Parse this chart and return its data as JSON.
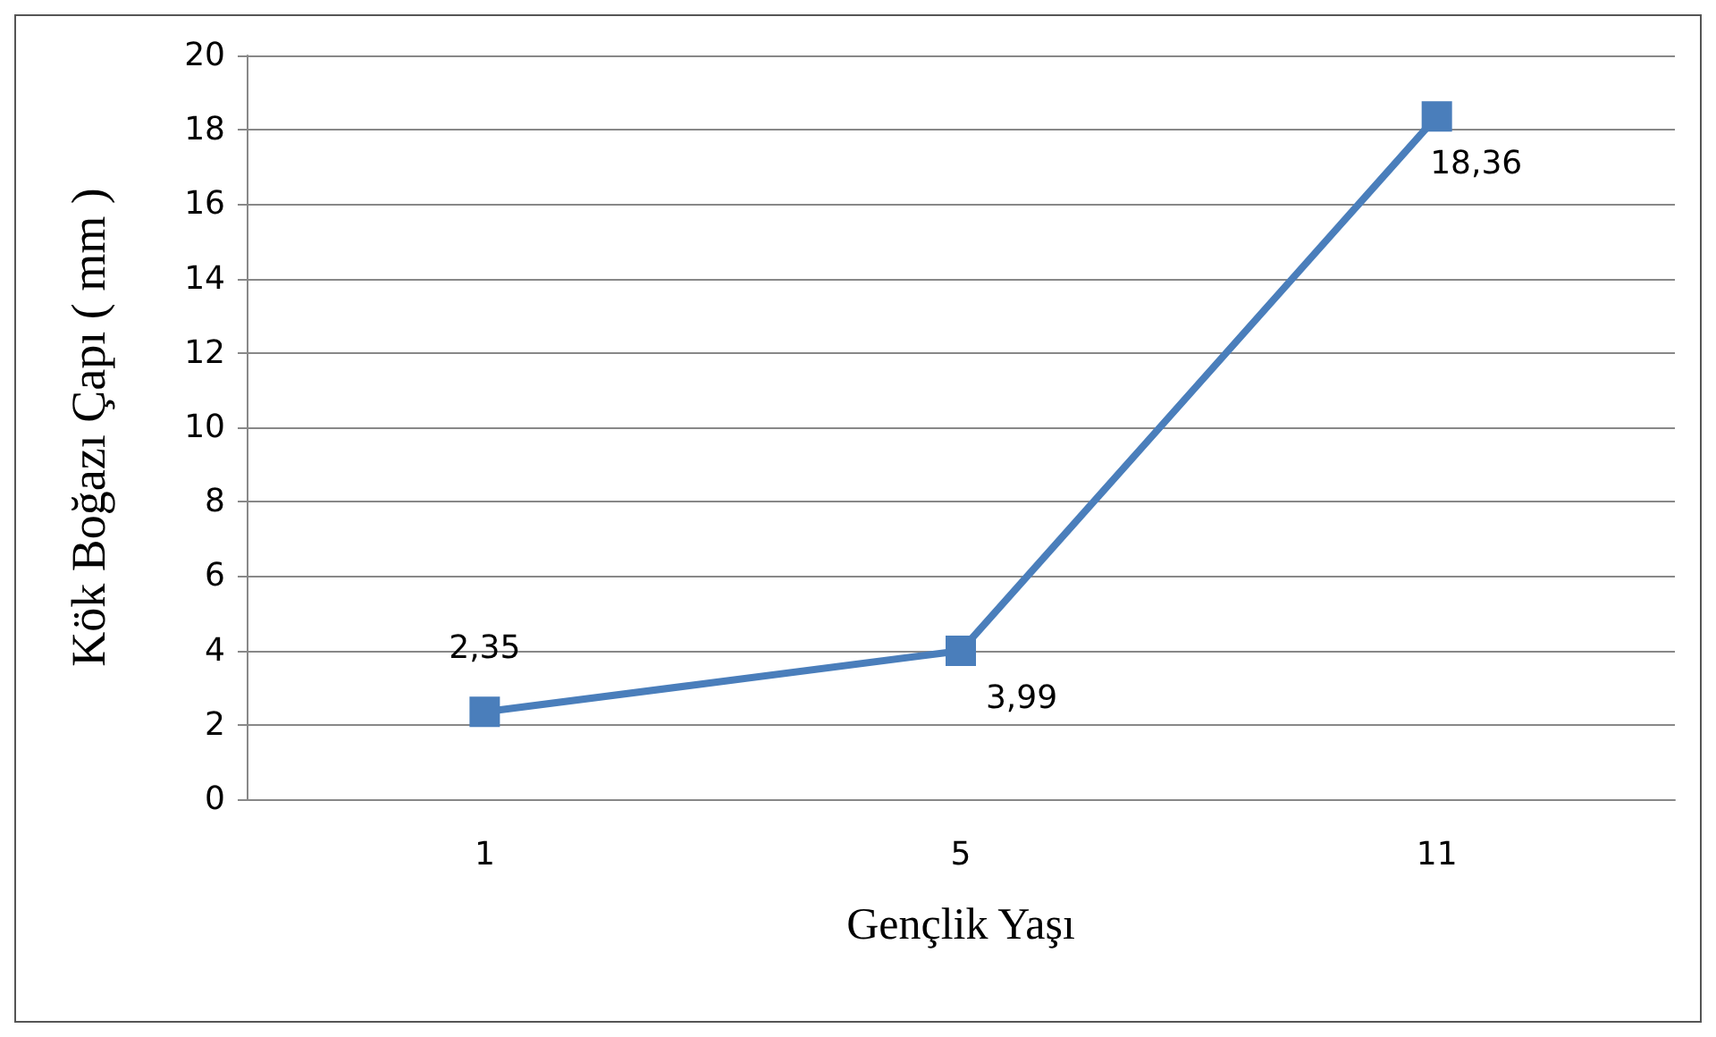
{
  "chart_data": {
    "type": "line",
    "xlabel": "Gençlik Yaşı",
    "ylabel": "Kök Boğazı Çapı ( mm )",
    "categories": [
      "1",
      "5",
      "11"
    ],
    "series": [
      {
        "color": "#4a7ebb",
        "values": [
          2.35,
          3.99,
          18.36
        ],
        "value_labels": [
          "2,35",
          "3,99",
          "18,36"
        ]
      }
    ],
    "ylim": [
      0,
      20
    ],
    "yticks": [
      0,
      2,
      4,
      6,
      8,
      10,
      12,
      14,
      16,
      18,
      20
    ],
    "grid": "y",
    "marker": "square",
    "line_style": "solid"
  }
}
